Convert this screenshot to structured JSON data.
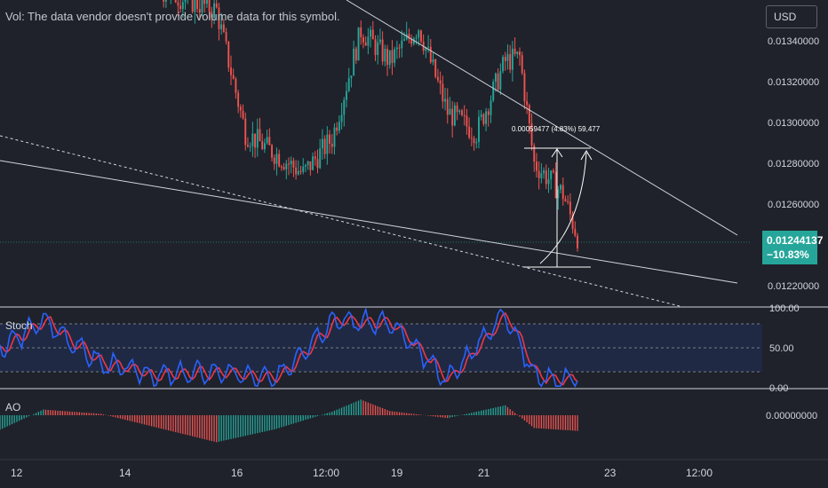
{
  "header": {
    "volume_note": "Vol: The data vendor doesn't provide volume data for this symbol.",
    "currency_button": "USD"
  },
  "price_axis": {
    "ticks": [
      "0.01340000",
      "0.01320000",
      "0.01300000",
      "0.01280000",
      "0.01260000",
      "0.01220000"
    ],
    "last_price": "0.01244137",
    "last_change": "−10.83%"
  },
  "measure_label": "0.00059477 (4.83%) 59,477",
  "stoch": {
    "label": "Stoch",
    "ticks": [
      "100.00",
      "50.00",
      "0.00"
    ]
  },
  "ao": {
    "label": "AO",
    "tick": "0.00000000"
  },
  "time_axis": {
    "ticks": [
      "12",
      "14",
      "16",
      "12:00",
      "19",
      "21",
      "23",
      "12:00"
    ]
  },
  "colors": {
    "background": "#1f222a",
    "up": "#26a69a",
    "down": "#ef5350",
    "stoch_k": "#2962ff",
    "stoch_d": "#f23645"
  },
  "chart_data": {
    "type": "candlestick",
    "price_range": [
      0.0121,
      0.0136
    ],
    "close_path_waypoints": [
      {
        "x": "11 Feb",
        "price": 0.01385
      },
      {
        "x": "13 Feb",
        "price": 0.01375
      },
      {
        "x": "15 Feb",
        "price": 0.01355
      },
      {
        "x": "15 Feb 12:00",
        "price": 0.01295
      },
      {
        "x": "16 Feb",
        "price": 0.01285
      },
      {
        "x": "16 Feb 12:00",
        "price": 0.01275
      },
      {
        "x": "17 Feb",
        "price": 0.01292
      },
      {
        "x": "17 Feb 12:00",
        "price": 0.01345
      },
      {
        "x": "18 Feb",
        "price": 0.0133
      },
      {
        "x": "18 Feb 12:00",
        "price": 0.01347
      },
      {
        "x": "19 Feb",
        "price": 0.01305
      },
      {
        "x": "19 Feb 12:00",
        "price": 0.01295
      },
      {
        "x": "20 Feb",
        "price": 0.0133
      },
      {
        "x": "20 Feb 06:00",
        "price": 0.01332
      },
      {
        "x": "20 Feb 12:00",
        "price": 0.0128
      },
      {
        "x": "21 Feb",
        "price": 0.01265
      },
      {
        "x": "21 Feb 06:00",
        "price": 0.01244
      }
    ],
    "stoch_waypoints_k": [
      {
        "x": "11 Feb",
        "value": 35
      },
      {
        "x": "12 Feb",
        "value": 85
      },
      {
        "x": "13 Feb",
        "value": 30
      },
      {
        "x": "14 Feb",
        "value": 15
      },
      {
        "x": "15 Feb",
        "value": 20
      },
      {
        "x": "16 Feb",
        "value": 10
      },
      {
        "x": "17 Feb",
        "value": 85
      },
      {
        "x": "18 Feb",
        "value": 80
      },
      {
        "x": "19 Feb",
        "value": 10
      },
      {
        "x": "20 Feb",
        "value": 95
      },
      {
        "x": "20 Feb 12:00",
        "value": 15
      },
      {
        "x": "21 Feb",
        "value": 10
      },
      {
        "x": "21 Feb 06:00",
        "value": 15
      }
    ],
    "stoch_range": [
      0,
      100
    ],
    "ao_waypoints": [
      {
        "x": "11 Feb",
        "value": -30
      },
      {
        "x": "12 Feb",
        "value": 8
      },
      {
        "x": "13 Feb",
        "value": 2
      },
      {
        "x": "15 Feb",
        "value": -38
      },
      {
        "x": "16 Feb",
        "value": -20
      },
      {
        "x": "17 Feb",
        "value": 5
      },
      {
        "x": "17 Feb 12:00",
        "value": 22
      },
      {
        "x": "18 Feb",
        "value": 6
      },
      {
        "x": "19 Feb",
        "value": -4
      },
      {
        "x": "20 Feb",
        "value": 14
      },
      {
        "x": "20 Feb 12:00",
        "value": -18
      },
      {
        "x": "21 Feb 06:00",
        "value": -22
      }
    ],
    "ao_range": [
      -45,
      30
    ]
  }
}
